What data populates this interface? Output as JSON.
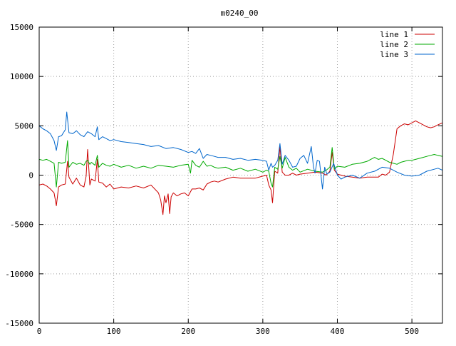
{
  "chart_data": {
    "type": "line",
    "title": "m0240_00",
    "xlabel": "",
    "ylabel": "",
    "xlim": [
      0,
      541
    ],
    "ylim": [
      -15000,
      15000
    ],
    "x_ticks": [
      0,
      100,
      200,
      300,
      400,
      500
    ],
    "y_ticks": [
      -15000,
      -10000,
      -5000,
      0,
      5000,
      10000,
      15000
    ],
    "grid": true,
    "legend_position": "top-right",
    "series": [
      {
        "name": "line 1",
        "color": "#cc0000",
        "x": [
          0,
          5,
          10,
          15,
          20,
          23,
          26,
          30,
          35,
          38,
          40,
          45,
          50,
          55,
          60,
          63,
          65,
          68,
          70,
          75,
          78,
          80,
          85,
          90,
          95,
          100,
          110,
          120,
          130,
          140,
          150,
          160,
          163,
          166,
          168,
          170,
          173,
          175,
          177,
          180,
          185,
          190,
          195,
          200,
          205,
          210,
          215,
          220,
          225,
          230,
          235,
          240,
          250,
          260,
          270,
          280,
          290,
          300,
          305,
          308,
          311,
          313,
          316,
          320,
          323,
          326,
          330,
          335,
          340,
          345,
          350,
          360,
          370,
          380,
          385,
          390,
          393,
          396,
          400,
          410,
          420,
          430,
          440,
          450,
          455,
          460,
          465,
          470,
          475,
          480,
          485,
          490,
          495,
          500,
          505,
          510,
          515,
          520,
          525,
          530,
          535,
          541
        ],
        "y": [
          -1000,
          -900,
          -1100,
          -1400,
          -1800,
          -3100,
          -1200,
          -1000,
          -900,
          1400,
          -200,
          -900,
          -300,
          -1000,
          -1200,
          -100,
          2600,
          -1000,
          -400,
          -600,
          1600,
          -700,
          -800,
          -1200,
          -900,
          -1400,
          -1200,
          -1300,
          -1100,
          -1300,
          -1000,
          -1800,
          -2500,
          -4000,
          -2100,
          -2800,
          -1900,
          -3900,
          -2200,
          -1800,
          -2100,
          -1900,
          -1800,
          -2100,
          -1400,
          -1400,
          -1300,
          -1500,
          -900,
          -700,
          -600,
          -700,
          -400,
          -200,
          -300,
          -300,
          -300,
          -100,
          0,
          -1000,
          -1500,
          -2800,
          400,
          200,
          2900,
          300,
          0,
          0,
          200,
          0,
          100,
          200,
          300,
          200,
          0,
          400,
          2300,
          500,
          100,
          -100,
          -200,
          -300,
          -200,
          -200,
          -200,
          100,
          0,
          300,
          2100,
          4700,
          5000,
          5200,
          5100,
          5300,
          5500,
          5300,
          5100,
          4900,
          4800,
          4900,
          5100,
          5300
        ]
      },
      {
        "name": "line 2",
        "color": "#00aa00",
        "x": [
          0,
          5,
          10,
          15,
          20,
          23,
          26,
          30,
          35,
          38,
          40,
          45,
          50,
          55,
          60,
          63,
          65,
          68,
          70,
          75,
          78,
          80,
          85,
          90,
          95,
          100,
          110,
          120,
          130,
          140,
          150,
          160,
          170,
          180,
          190,
          200,
          203,
          205,
          210,
          215,
          220,
          225,
          230,
          235,
          240,
          250,
          260,
          270,
          280,
          290,
          300,
          305,
          308,
          311,
          313,
          316,
          320,
          323,
          326,
          330,
          335,
          340,
          345,
          350,
          360,
          370,
          380,
          385,
          390,
          393,
          396,
          400,
          410,
          420,
          430,
          440,
          450,
          455,
          460,
          465,
          470,
          475,
          480,
          485,
          490,
          495,
          500,
          505,
          510,
          515,
          520,
          525,
          530,
          535,
          541
        ],
        "y": [
          1600,
          1500,
          1600,
          1400,
          1200,
          -1200,
          1300,
          1200,
          1300,
          3500,
          800,
          1300,
          1100,
          1200,
          1000,
          1400,
          1500,
          1100,
          1300,
          1000,
          2000,
          800,
          1200,
          1000,
          900,
          1100,
          800,
          1000,
          700,
          900,
          700,
          1000,
          900,
          800,
          1000,
          1100,
          200,
          1500,
          1000,
          800,
          1400,
          900,
          1000,
          800,
          700,
          800,
          500,
          700,
          400,
          600,
          300,
          500,
          400,
          -800,
          -1200,
          800,
          600,
          1900,
          700,
          1800,
          800,
          500,
          700,
          300,
          600,
          400,
          300,
          500,
          800,
          2800,
          600,
          900,
          800,
          1100,
          1200,
          1400,
          1800,
          1600,
          1700,
          1500,
          1300,
          1200,
          1100,
          1300,
          1400,
          1500,
          1500,
          1600,
          1700,
          1800,
          1900,
          2000,
          2100,
          2000,
          1900
        ]
      },
      {
        "name": "line 3",
        "color": "#0066cc",
        "x": [
          0,
          5,
          10,
          15,
          20,
          23,
          26,
          30,
          35,
          37,
          40,
          45,
          50,
          55,
          60,
          65,
          70,
          75,
          78,
          80,
          85,
          90,
          95,
          100,
          110,
          120,
          130,
          140,
          150,
          160,
          170,
          180,
          190,
          200,
          205,
          210,
          215,
          220,
          225,
          230,
          235,
          240,
          250,
          260,
          270,
          280,
          290,
          300,
          305,
          308,
          311,
          313,
          316,
          320,
          323,
          326,
          330,
          335,
          340,
          345,
          350,
          355,
          360,
          365,
          368,
          370,
          373,
          376,
          380,
          383,
          386,
          390,
          395,
          400,
          405,
          410,
          420,
          430,
          440,
          450,
          460,
          470,
          480,
          490,
          500,
          510,
          520,
          530,
          535,
          541
        ],
        "y": [
          5000,
          4700,
          4500,
          4200,
          3500,
          2500,
          3900,
          4000,
          4600,
          6400,
          4300,
          4200,
          4500,
          4100,
          3900,
          4400,
          4200,
          3900,
          4900,
          3600,
          3900,
          3700,
          3500,
          3600,
          3400,
          3300,
          3200,
          3100,
          2900,
          3000,
          2700,
          2800,
          2600,
          2300,
          2400,
          2200,
          2700,
          1700,
          2100,
          2000,
          1900,
          1800,
          1800,
          1600,
          1700,
          1500,
          1600,
          1500,
          1400,
          500,
          1200,
          800,
          1000,
          1500,
          3200,
          1100,
          2000,
          1500,
          800,
          900,
          1700,
          2000,
          1200,
          2900,
          800,
          200,
          1500,
          1400,
          -1400,
          800,
          100,
          300,
          1200,
          0,
          -400,
          -200,
          0,
          -300,
          200,
          400,
          800,
          700,
          300,
          0,
          -100,
          0,
          400,
          600,
          700,
          500
        ]
      }
    ]
  }
}
